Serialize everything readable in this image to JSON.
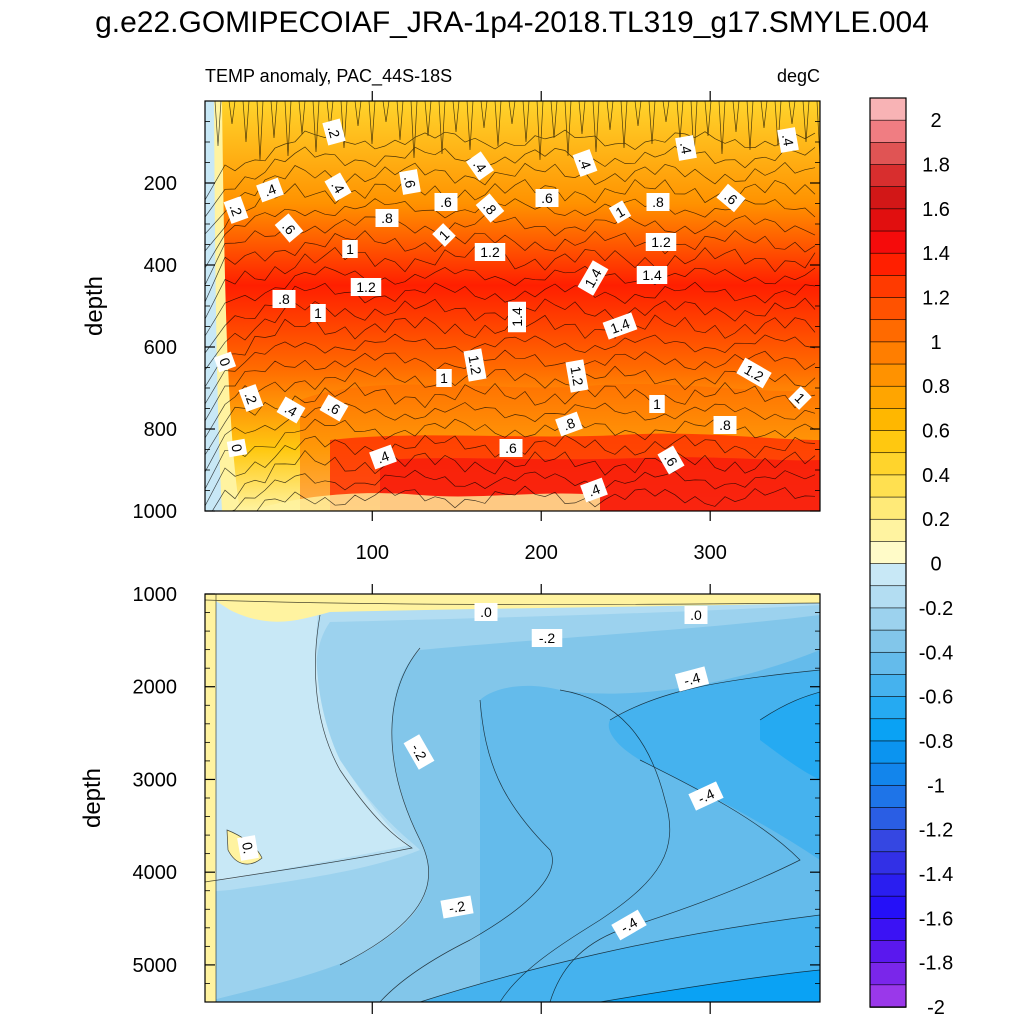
{
  "title": "g.e22.GOMIPECOIAF_JRA-1p4-2018.TL319_g17.SMYLE.004",
  "chart_data": {
    "type": "contour",
    "subtitle_left": "TEMP anomaly, PAC_44S-18S",
    "subtitle_right": "degC",
    "x_ticks": [
      100,
      200,
      300
    ],
    "x_range": [
      1,
      365
    ],
    "colorbar": {
      "levels": [
        -2,
        -1.8,
        -1.6,
        -1.4,
        -1.2,
        -1,
        -0.8,
        -0.6,
        -0.4,
        -0.2,
        0,
        0.2,
        0.4,
        0.6,
        0.8,
        1,
        1.2,
        1.4,
        1.6,
        1.8,
        2
      ],
      "labels": [
        "2",
        "1.8",
        "1.6",
        "1.4",
        "1.2",
        "1",
        "0.8",
        "0.6",
        "0.4",
        "0.2",
        "0",
        "-0.2",
        "-0.4",
        "-0.6",
        "-0.8",
        "-1",
        "-1.2",
        "-1.4",
        "-1.6",
        "-1.8",
        "-2"
      ],
      "colors": [
        "#f8b3b5",
        "#f07d82",
        "#e05454",
        "#d82e2e",
        "#d21717",
        "#e10f0f",
        "#f50b0b",
        "#ff1f00",
        "#ff3a00",
        "#ff5200",
        "#ff6a00",
        "#ff7e00",
        "#ff9200",
        "#ffa500",
        "#ffb700",
        "#ffc810",
        "#ffd42c",
        "#ffe050",
        "#ffea78",
        "#fff3a0",
        "#fffbc8",
        "#c8e8f6",
        "#b3ddf2",
        "#9cd2ee",
        "#82c6ea",
        "#64bbeb",
        "#45b2ee",
        "#25aaf2",
        "#0aa2f4",
        "#0b94f0",
        "#1285ec",
        "#1e74e8",
        "#2a5ee4",
        "#3547e2",
        "#3230e6",
        "#2a1ef0",
        "#2510f8",
        "#3b12f4",
        "#5a18ee",
        "#7a26ea",
        "#9a38ea"
      ]
    },
    "upper_panel": {
      "ylabel": "depth",
      "y_ticks": [
        200,
        400,
        600,
        800,
        1000
      ],
      "y_range": [
        0,
        1000
      ],
      "contour_labels": [
        ".2",
        ".4",
        ".2",
        ".4",
        ".6",
        ".4",
        ".4",
        ".4",
        ".4",
        ".6",
        ".6",
        ".8",
        ".6",
        ".8",
        ".8",
        ".6",
        "1",
        "1",
        "1.2",
        "1.2",
        "1.4",
        "1.4",
        ".8",
        "1",
        "1.2",
        "1.4",
        "1.4",
        "1.2",
        "1",
        "1.2",
        "1.2",
        "1",
        "0",
        ".2",
        ".4",
        ".6",
        "0",
        ".4",
        ".6",
        ".8",
        "1",
        ".8",
        ".6",
        ".4",
        "1"
      ]
    },
    "lower_panel": {
      "ylabel": "depth",
      "y_ticks": [
        1000,
        2000,
        3000,
        4000,
        5000
      ],
      "y_range": [
        1000,
        5400
      ],
      "contour_labels": [
        ".0",
        ".0",
        "-.2",
        "-.4",
        "-.2",
        "-.4",
        "0.",
        "-.2",
        "-.4"
      ]
    }
  }
}
